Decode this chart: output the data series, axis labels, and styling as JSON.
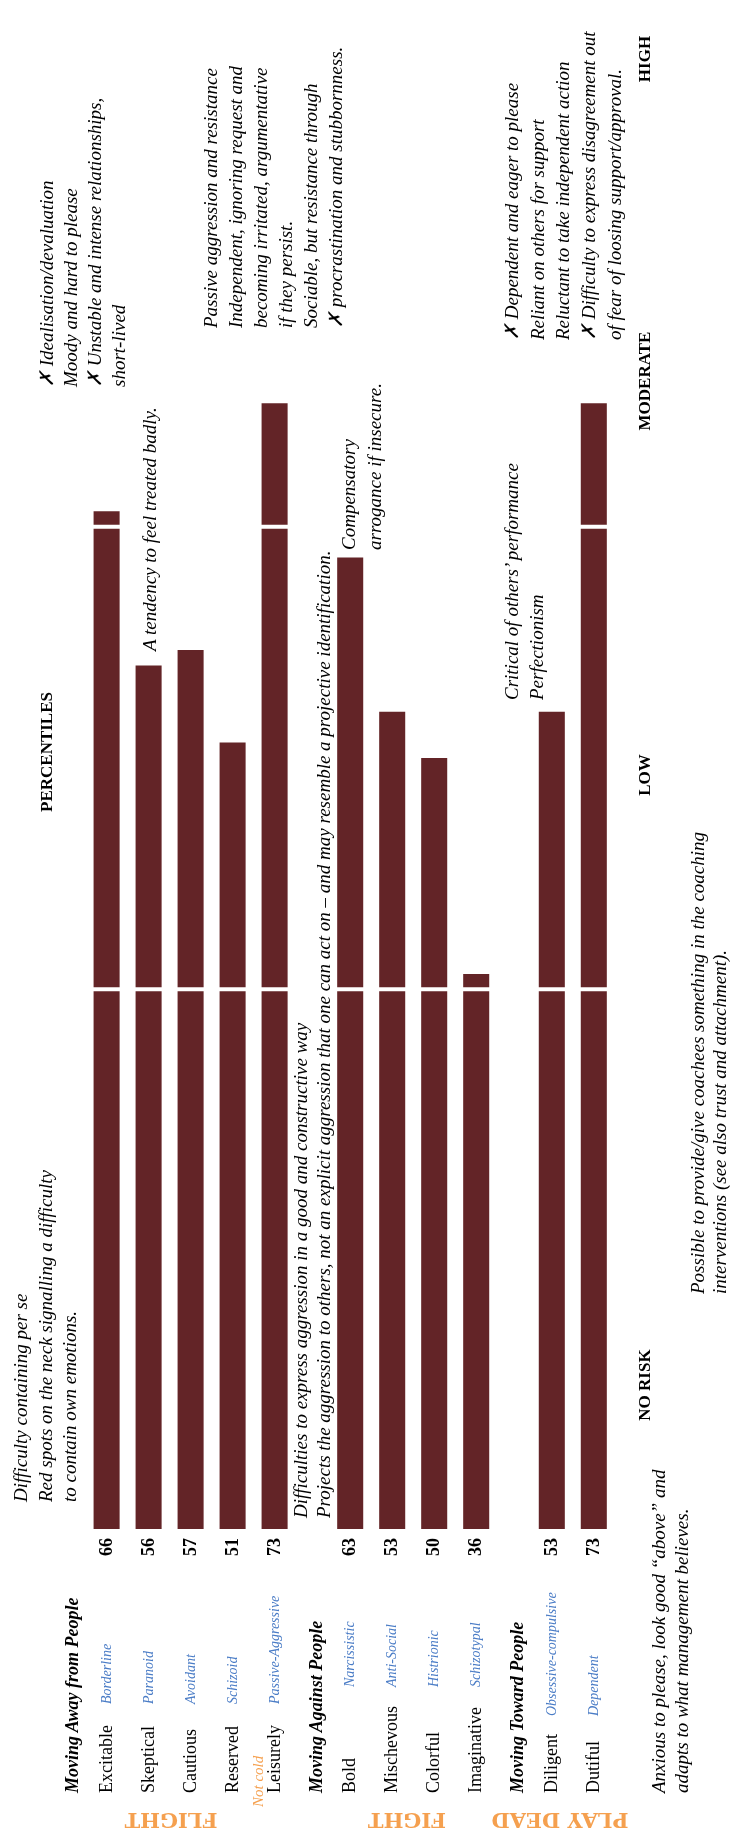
{
  "chart_data": {
    "type": "bar",
    "ylabel": "PERCENTILES",
    "categories": [
      "Moving Away from People",
      "Excitable",
      "Skeptical",
      "Cautious",
      "Reserved",
      "Leisurely",
      "Moving Against People",
      "Bold",
      "Mischevous",
      "Colorful",
      "Imaginative",
      "Moving Toward People",
      "Diligent",
      "Dutiful"
    ],
    "values": [
      null,
      66,
      56,
      57,
      51,
      73,
      null,
      63,
      53,
      50,
      36,
      null,
      53,
      73
    ],
    "color": "#632427",
    "data_labels": true,
    "ref_lines": [
      {
        "axis": "y",
        "value": 35,
        "color": "#ffffff"
      },
      {
        "axis": "y",
        "value": 65,
        "color": "#ffffff"
      }
    ],
    "annotations": [
      "Difficulty containing per se\nRed spots on the neck signalling a difficulty\nto contain own emotions.",
      "Difficulties to express aggression in a good and constructive way\nProjects the aggression to others, not an explicit aggression that one can act on – and may resemble a projective identification.",
      "A tendency to feel treated badly.",
      "Compensatory\narrogance if insecure.",
      "Critical of others’ performance\nPerfectionism",
      "✗ Idealisation/devaluation\nMoody and hard to please\n✗ Unstable and intense relationships,\nshort-lived",
      "Passive aggression and resistance\nIndependent, ignoring request and\nbecoming irritated, argumentative\nif they persist.\nSociable, but resistance through\n✗ procrastination and stubbornness.",
      "✗ Dependent and eager to please\nReliant on others for support\nReluctant to take independent action\n✗ Difficulty to express disagreement out\nof fear of loosing support/approval.",
      "Possible to provide/give coachees something in the coaching\ninterventions (see also trust and attachment).",
      "Anxious to please, look good “above” and\nadapts to what management believes.",
      "Not cold",
      "FLIGHT",
      "FIGHT",
      "PLAY DEAD",
      "NO RISK",
      "LOW",
      "MODERATE",
      "HIGH",
      "Borderline",
      "Paranoid",
      "Avoidant",
      "Schizoid",
      "Passive-Aggressive",
      "Narcissistic",
      "Anti-Social",
      "Histrionic",
      "Schizotypal",
      "Obsessive-compulsive",
      "Dependent"
    ]
  }
}
